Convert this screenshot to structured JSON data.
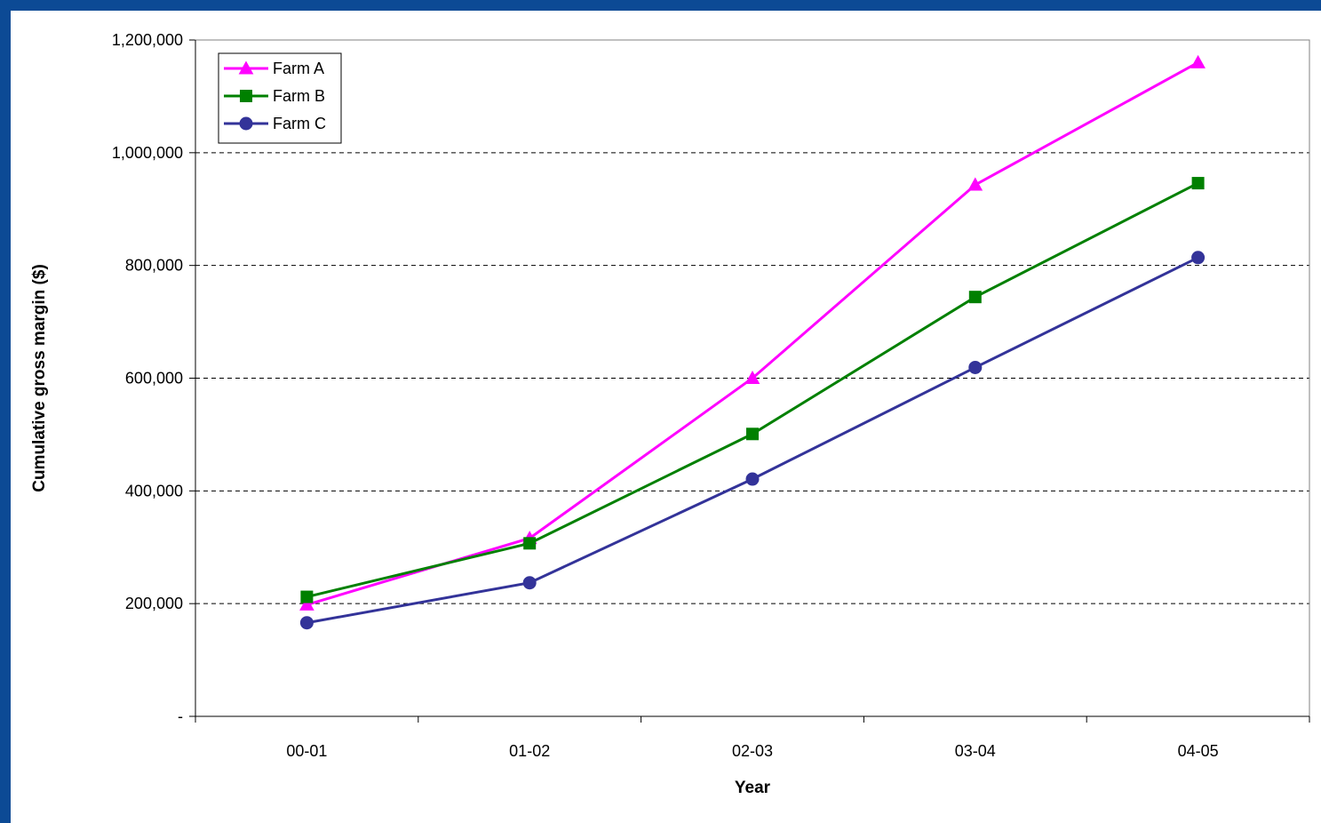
{
  "chart_data": {
    "type": "line",
    "title": "",
    "xlabel": "Year",
    "ylabel": "Cumulative gross margin ($)",
    "categories": [
      "00-01",
      "01-02",
      "02-03",
      "03-04",
      "04-05"
    ],
    "ylim": [
      0,
      1200000
    ],
    "yticks": [
      0,
      200000,
      400000,
      600000,
      800000,
      1000000,
      1200000
    ],
    "ytick_labels": [
      "-",
      "200,000",
      "400,000",
      "600,000",
      "800,000",
      "1,000,000",
      "1,200,000"
    ],
    "grid": "horizontal dashed",
    "legend_position": "top-left",
    "series": [
      {
        "name": "Farm A",
        "color": "#ff00ff",
        "marker": "triangle",
        "values": [
          198000,
          316000,
          600000,
          943000,
          1160000
        ]
      },
      {
        "name": "Farm B",
        "color": "#008000",
        "marker": "square",
        "values": [
          212000,
          307000,
          501000,
          744000,
          946000
        ]
      },
      {
        "name": "Farm C",
        "color": "#333399",
        "marker": "circle",
        "values": [
          166000,
          237000,
          421000,
          619000,
          814000
        ]
      }
    ]
  }
}
